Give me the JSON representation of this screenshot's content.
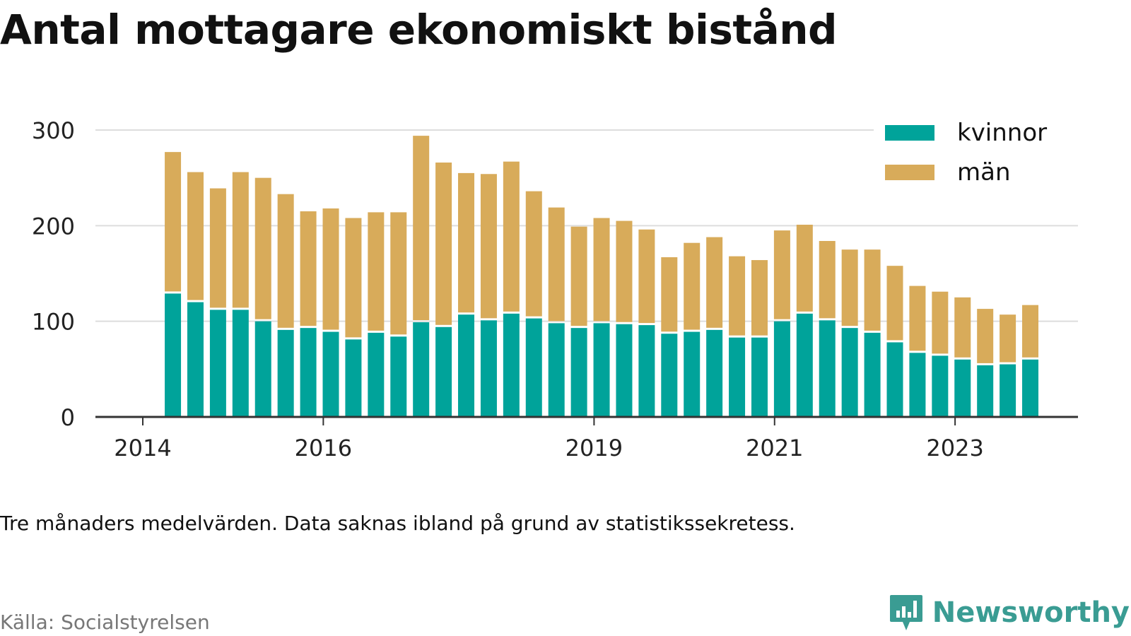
{
  "title": "Antal mottagare ekonomiskt bistånd",
  "caption": "Tre månaders medelvärden. Data saknas ibland på grund av statistikssekretess.",
  "source": "Källa: Socialstyrelsen",
  "brand": {
    "name": "Newsworthy",
    "icon": "newsworthy-logo-icon"
  },
  "colors": {
    "kvinnor": "#00a39a",
    "man": "#d8ab5a",
    "grid": "#dddddd",
    "axis": "#333333"
  },
  "chart_data": {
    "type": "bar",
    "stacked": true,
    "grid": true,
    "legend_position": "top-right",
    "ylim": [
      0,
      300
    ],
    "yticks": [
      "0",
      "100",
      "200",
      "300"
    ],
    "xticks": [
      {
        "label": "2014",
        "at": "2014-01"
      },
      {
        "label": "2016",
        "at": "2016-01"
      },
      {
        "label": "2019",
        "at": "2019-01"
      },
      {
        "label": "2021",
        "at": "2021-01"
      },
      {
        "label": "2023",
        "at": "2023-01"
      }
    ],
    "categories": [
      "2014-05",
      "2014-08",
      "2014-11",
      "2015-02",
      "2015-05",
      "2015-08",
      "2015-11",
      "2016-02",
      "2016-05",
      "2016-08",
      "2016-11",
      "2017-02",
      "2017-05",
      "2017-08",
      "2017-11",
      "2018-02",
      "2018-05",
      "2018-08",
      "2018-11",
      "2019-02",
      "2019-05",
      "2019-08",
      "2019-11",
      "2020-02",
      "2020-05",
      "2020-08",
      "2020-11",
      "2021-02",
      "2021-05",
      "2021-08",
      "2021-11",
      "2022-02",
      "2022-05",
      "2022-08",
      "2022-11",
      "2023-02",
      "2023-05",
      "2023-08",
      "2023-11"
    ],
    "series": [
      {
        "name": "kvinnor",
        "values": [
          129,
          120,
          112,
          112,
          100,
          91,
          93,
          89,
          81,
          88,
          84,
          99,
          94,
          107,
          101,
          108,
          103,
          98,
          93,
          98,
          97,
          96,
          87,
          89,
          91,
          83,
          83,
          100,
          108,
          101,
          93,
          88,
          78,
          67,
          64,
          60,
          54,
          55,
          60
        ]
      },
      {
        "name": "män",
        "values": [
          148,
          136,
          127,
          144,
          150,
          142,
          122,
          129,
          127,
          126,
          130,
          195,
          172,
          148,
          153,
          159,
          133,
          121,
          106,
          110,
          108,
          100,
          80,
          93,
          97,
          85,
          81,
          95,
          93,
          83,
          82,
          87,
          80,
          70,
          67,
          65,
          59,
          52,
          57
        ]
      }
    ]
  }
}
